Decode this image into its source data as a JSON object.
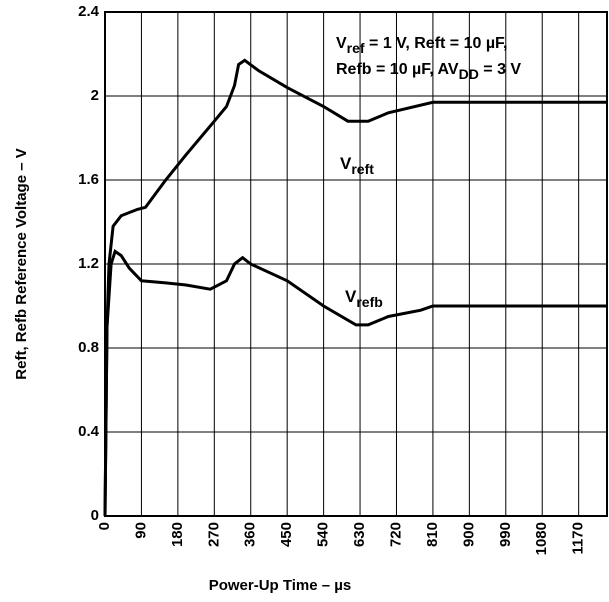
{
  "chart_data": {
    "type": "line",
    "xlabel": "Power-Up Time – µs",
    "ylabel": "Reft, Refb Reference Voltage – V",
    "annotation": [
      [
        "V",
        "ref",
        " = 1 V, Reft = 10 µF,"
      ],
      [
        "Refb = 10 µF, AV",
        "DD",
        " = 3 V"
      ]
    ],
    "xlim": [
      0,
      1240
    ],
    "ylim": [
      0,
      2.4
    ],
    "xticks": [
      0,
      90,
      180,
      270,
      360,
      450,
      540,
      630,
      720,
      810,
      900,
      990,
      1080,
      1170
    ],
    "yticks": [
      0,
      0.4,
      0.8,
      1.2,
      1.6,
      2,
      2.4
    ],
    "grid": true,
    "series": [
      {
        "label": [
          "V",
          "reft"
        ],
        "color": "#000000",
        "x": [
          0,
          5,
          10,
          20,
          40,
          80,
          100,
          150,
          200,
          270,
          300,
          320,
          330,
          345,
          380,
          450,
          540,
          600,
          650,
          700,
          810,
          1240
        ],
        "values": [
          0,
          0.9,
          1.2,
          1.38,
          1.43,
          1.46,
          1.47,
          1.6,
          1.72,
          1.88,
          1.95,
          2.05,
          2.15,
          2.17,
          2.12,
          2.04,
          1.95,
          1.88,
          1.88,
          1.92,
          1.97,
          1.97
        ]
      },
      {
        "label": [
          "V",
          "refb"
        ],
        "color": "#000000",
        "x": [
          0,
          5,
          15,
          25,
          40,
          60,
          90,
          150,
          200,
          260,
          300,
          320,
          340,
          360,
          450,
          540,
          620,
          650,
          700,
          780,
          810,
          1240
        ],
        "values": [
          0,
          0.9,
          1.2,
          1.26,
          1.24,
          1.18,
          1.12,
          1.11,
          1.1,
          1.08,
          1.12,
          1.2,
          1.23,
          1.2,
          1.12,
          1,
          0.91,
          0.91,
          0.95,
          0.98,
          1,
          1
        ]
      }
    ]
  }
}
